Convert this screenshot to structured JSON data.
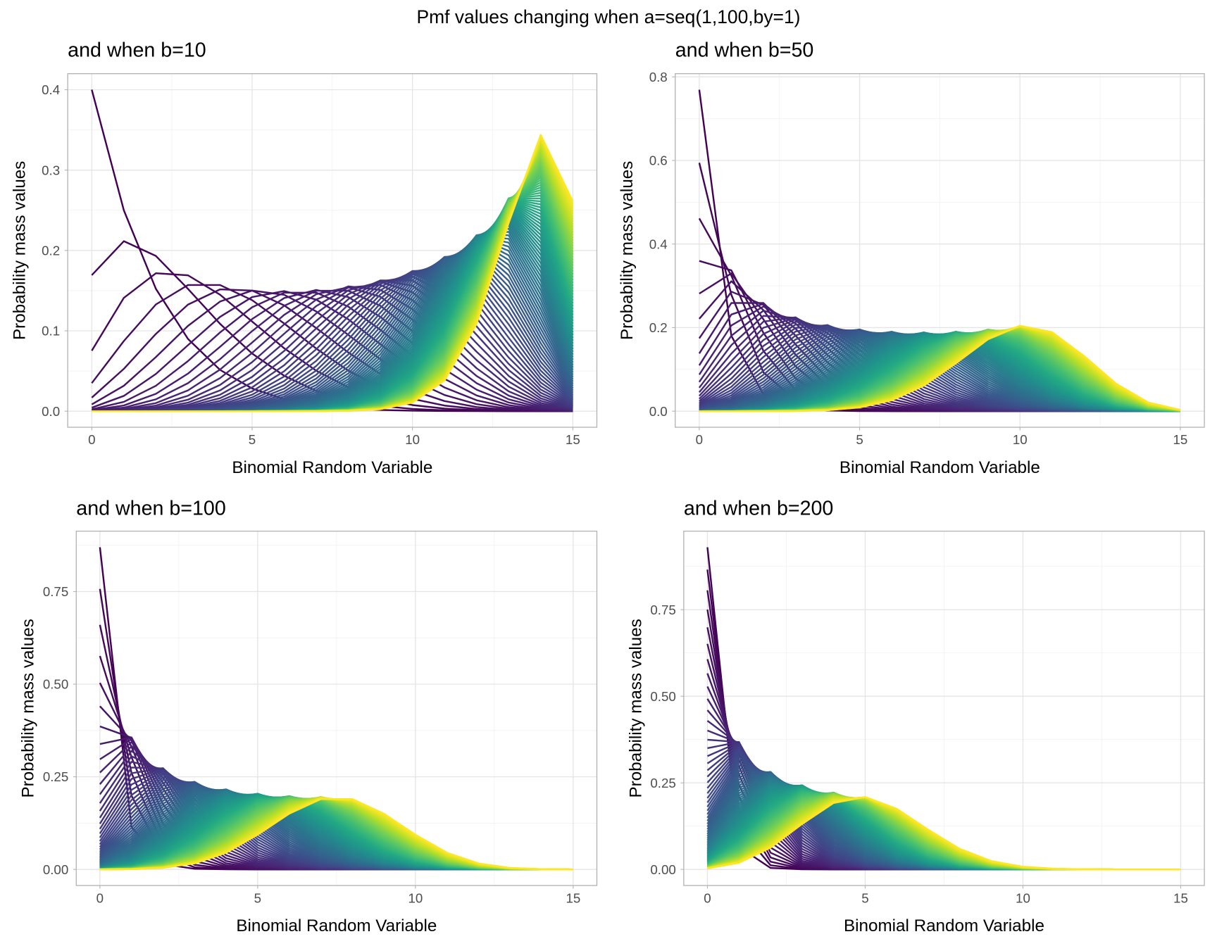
{
  "suptitle": "Pmf values changing when a=seq(1,100,by=1)",
  "chart_data": [
    {
      "type": "line",
      "title": "and when b=10",
      "xlabel": "Binomial Random Variable",
      "ylabel": "Probability mass values",
      "x": [
        0,
        1,
        2,
        3,
        4,
        5,
        6,
        7,
        8,
        9,
        10,
        11,
        12,
        13,
        14,
        15
      ],
      "xticks": [
        0,
        5,
        10,
        15
      ],
      "xticklabels": [
        "0",
        "5",
        "10",
        "15"
      ],
      "yticks": [
        0,
        0.1,
        0.2,
        0.3,
        0.4
      ],
      "yticklabels": [
        "0.0",
        "0.1",
        "0.2",
        "0.3",
        "0.4"
      ],
      "ylim": [
        0,
        0.4
      ],
      "series_model": {
        "distribution": "beta-binomial",
        "n": 15,
        "a": {
          "from": 1,
          "to": 100,
          "by": 1
        },
        "b": 10
      },
      "colormap": "viridis",
      "grid": true,
      "legend": "none"
    },
    {
      "type": "line",
      "title": "and when b=50",
      "xlabel": "Binomial Random Variable",
      "ylabel": "Probability mass values",
      "x": [
        0,
        1,
        2,
        3,
        4,
        5,
        6,
        7,
        8,
        9,
        10,
        11,
        12,
        13,
        14,
        15
      ],
      "xticks": [
        0,
        5,
        10,
        15
      ],
      "xticklabels": [
        "0",
        "5",
        "10",
        "15"
      ],
      "yticks": [
        0,
        0.2,
        0.4,
        0.6,
        0.8
      ],
      "yticklabels": [
        "0.0",
        "0.2",
        "0.4",
        "0.6",
        "0.8"
      ],
      "ylim": [
        0,
        0.769
      ],
      "series_model": {
        "distribution": "beta-binomial",
        "n": 15,
        "a": {
          "from": 1,
          "to": 100,
          "by": 1
        },
        "b": 50
      },
      "colormap": "viridis",
      "grid": true,
      "legend": "none"
    },
    {
      "type": "line",
      "title": "and when b=100",
      "xlabel": "Binomial Random Variable",
      "ylabel": "Probability mass values",
      "x": [
        0,
        1,
        2,
        3,
        4,
        5,
        6,
        7,
        8,
        9,
        10,
        11,
        12,
        13,
        14,
        15
      ],
      "xticks": [
        0,
        5,
        10,
        15
      ],
      "xticklabels": [
        "0",
        "5",
        "10",
        "15"
      ],
      "yticks": [
        0,
        0.25,
        0.5,
        0.75
      ],
      "yticklabels": [
        "0.00",
        "0.25",
        "0.50",
        "0.75"
      ],
      "ylim": [
        0,
        0.87
      ],
      "series_model": {
        "distribution": "beta-binomial",
        "n": 15,
        "a": {
          "from": 1,
          "to": 100,
          "by": 1
        },
        "b": 100
      },
      "colormap": "viridis",
      "grid": true,
      "legend": "none"
    },
    {
      "type": "line",
      "title": "and when b=200",
      "xlabel": "Binomial Random Variable",
      "ylabel": "Probability mass values",
      "x": [
        0,
        1,
        2,
        3,
        4,
        5,
        6,
        7,
        8,
        9,
        10,
        11,
        12,
        13,
        14,
        15
      ],
      "xticks": [
        0,
        5,
        10,
        15
      ],
      "xticklabels": [
        "0",
        "5",
        "10",
        "15"
      ],
      "yticks": [
        0,
        0.25,
        0.5,
        0.75
      ],
      "yticklabels": [
        "0.00",
        "0.25",
        "0.50",
        "0.75"
      ],
      "ylim": [
        0,
        0.93
      ],
      "series_model": {
        "distribution": "beta-binomial",
        "n": 15,
        "a": {
          "from": 1,
          "to": 100,
          "by": 1
        },
        "b": 200
      },
      "colormap": "viridis",
      "grid": true,
      "legend": "none"
    }
  ]
}
